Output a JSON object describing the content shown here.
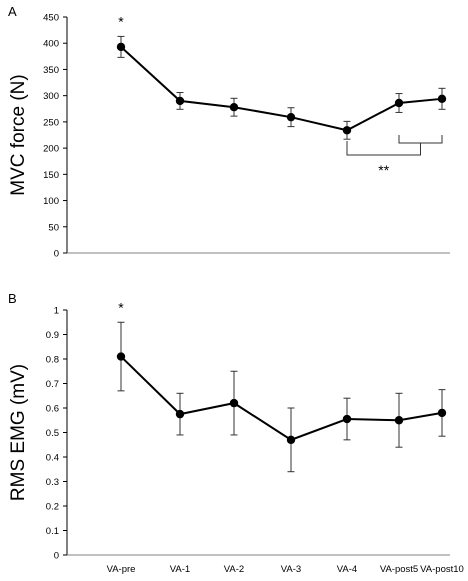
{
  "chart_data": [
    {
      "type": "line",
      "panel_label": "A",
      "ylabel": "MVC force (N)",
      "ylim": [
        0,
        450
      ],
      "yticks": [
        0,
        50,
        100,
        150,
        200,
        250,
        300,
        350,
        400,
        450
      ],
      "categories": [
        "VA-pre",
        "VA-1",
        "VA-2",
        "VA-3",
        "VA-4",
        "VA-post5",
        "VA-post10"
      ],
      "show_category_labels": false,
      "series": [
        {
          "values": [
            393,
            290,
            278,
            259,
            234,
            286,
            294
          ],
          "error": [
            20,
            16,
            17,
            18,
            17,
            18,
            20
          ]
        }
      ],
      "annotations": [
        {
          "text": "*",
          "category": "VA-pre"
        },
        {
          "text": "**",
          "bracket_from": "VA-4",
          "bracket_to_group": [
            "VA-post5",
            "VA-post10"
          ]
        }
      ],
      "grid": false
    },
    {
      "type": "line",
      "panel_label": "B",
      "ylabel": "RMS EMG (mV)",
      "ylim": [
        0,
        1
      ],
      "yticks": [
        "0",
        "0.1",
        "0.2",
        "0.3",
        "0.4",
        "0.5",
        "0.6",
        "0.7",
        "0.8",
        "0.9",
        "1"
      ],
      "categories": [
        "VA-pre",
        "VA-1",
        "VA-2",
        "VA-3",
        "VA-4",
        "VA-post5",
        "VA-post10"
      ],
      "show_category_labels": true,
      "series": [
        {
          "values": [
            0.81,
            0.575,
            0.62,
            0.47,
            0.555,
            0.55,
            0.58
          ],
          "error": [
            0.14,
            0.085,
            0.13,
            0.13,
            0.085,
            0.11,
            0.095
          ]
        }
      ],
      "annotations": [
        {
          "text": "*",
          "category": "VA-pre"
        }
      ],
      "grid": false
    }
  ]
}
